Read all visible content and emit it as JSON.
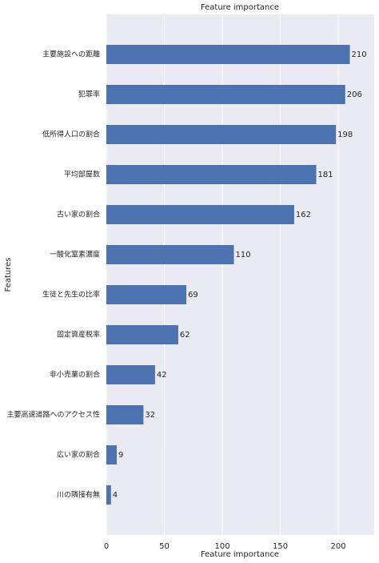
{
  "chart_data": {
    "type": "barh",
    "title": "Feature importance",
    "xlabel": "Feature importance",
    "ylabel": "Features",
    "categories": [
      "主要施設への距離",
      "犯罪率",
      "低所得人口の割合",
      "平均部屋数",
      "古い家の割合",
      "一酸化窒素濃度",
      "生徒と先生の比率",
      "固定資産税率",
      "非小売業の割合",
      "主要高速道路へのアクセス性",
      "広い家の割合",
      "川の隣接有無"
    ],
    "values": [
      210,
      206,
      198,
      181,
      162,
      110,
      69,
      62,
      42,
      32,
      9,
      4
    ],
    "color": "#4c72b0",
    "xlim": [
      0,
      231
    ],
    "xticks": [
      0,
      50,
      100,
      150,
      200
    ],
    "grid": true
  }
}
